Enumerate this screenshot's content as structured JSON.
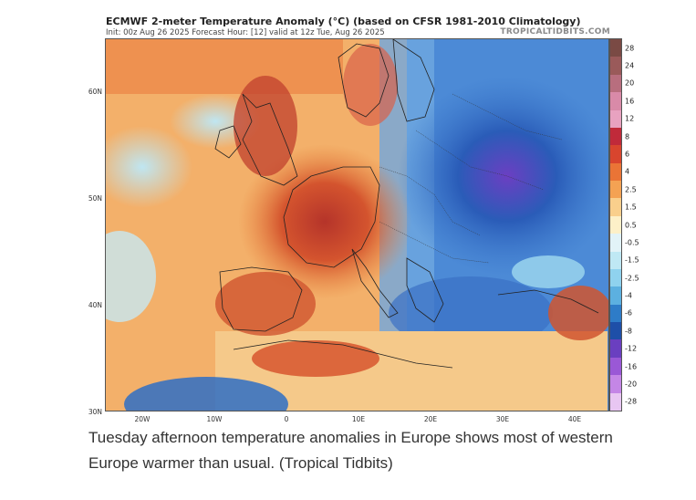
{
  "header": {
    "title": "ECMWF 2-meter Temperature Anomaly (°C) (based on CFSR 1981-2010 Climatology)",
    "subtitle": "Init: 00z Aug 26 2025   Forecast Hour: [12]   valid at 12z Tue, Aug 26 2025",
    "brand": "TROPICALTIDBITS.COM"
  },
  "map": {
    "lat_labels": [
      "60N",
      "50N",
      "40N",
      "30N"
    ],
    "lon_labels": [
      "20W",
      "10W",
      "0",
      "10E",
      "20E",
      "30E",
      "40E"
    ]
  },
  "colorbar": {
    "labels": [
      "28",
      "24",
      "20",
      "16",
      "12",
      "8",
      "6",
      "4",
      "2.5",
      "1.5",
      "0.5",
      "-0.5",
      "-1.5",
      "-2.5",
      "-4",
      "-6",
      "-8",
      "-12",
      "-16",
      "-20",
      "-28"
    ],
    "colors": [
      "#7a4a44",
      "#9a5a5a",
      "#b86e7e",
      "#d98aa8",
      "#e8a2c0",
      "#c02a3a",
      "#d8452e",
      "#ea7436",
      "#f4a253",
      "#f9cf8c",
      "#fdf0c8",
      "#e2f3f8",
      "#bfe8f4",
      "#8fd2ee",
      "#5cb0e0",
      "#2e7cc8",
      "#1e4fa8",
      "#6a3fc0",
      "#9a58d6",
      "#c486e6",
      "#e8c6f2"
    ]
  },
  "caption": {
    "text": "Tuesday afternoon temperature anomalies in Europe shows most of western Europe warmer than usual. (Tropical Tidbits)"
  }
}
